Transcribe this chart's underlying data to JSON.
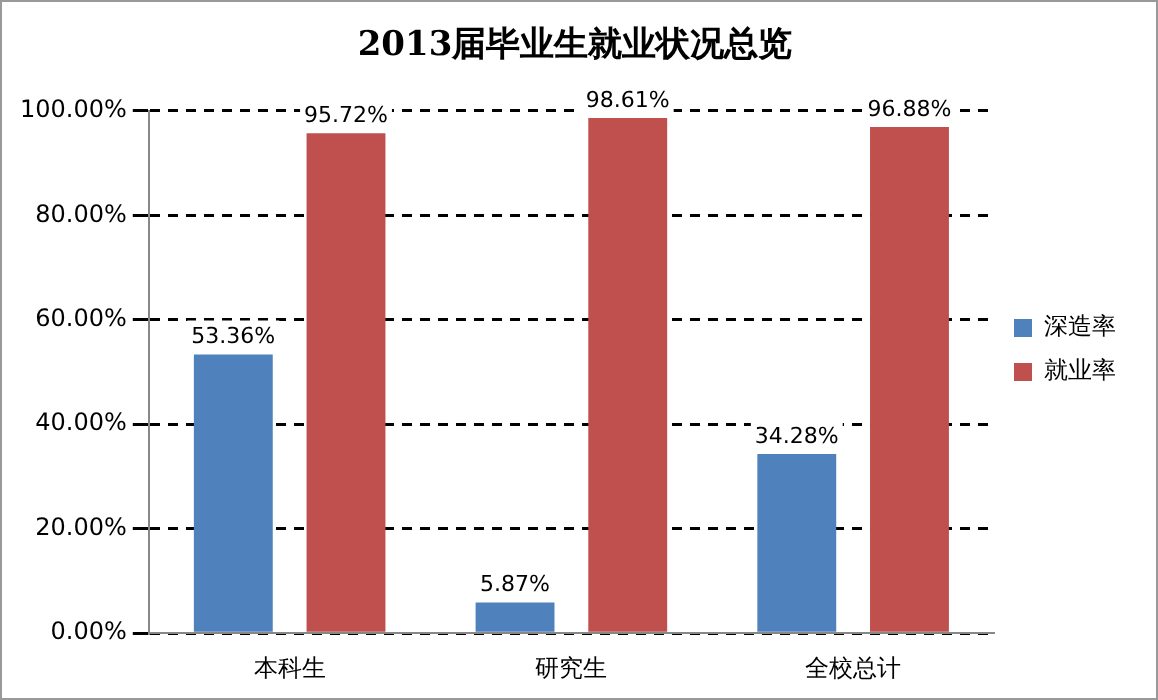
{
  "chart_data": {
    "type": "bar",
    "title": "2013届毕业生就业状况总览",
    "categories": [
      "本科生",
      "研究生",
      "全校总计"
    ],
    "series": [
      {
        "name": "深造率",
        "color": "#4f81bd",
        "values": [
          53.36,
          5.87,
          34.28
        ],
        "value_labels": [
          "53.36%",
          "5.87%",
          "34.28%"
        ]
      },
      {
        "name": "就业率",
        "color": "#c0504d",
        "values": [
          95.72,
          98.61,
          96.88
        ],
        "value_labels": [
          "95.72%",
          "98.61%",
          "96.88%"
        ]
      }
    ],
    "ylim": [
      0,
      100
    ],
    "yticks": [
      {
        "value": 0,
        "label": "0.00%"
      },
      {
        "value": 20,
        "label": "20.00%"
      },
      {
        "value": 40,
        "label": "40.00%"
      },
      {
        "value": 60,
        "label": "60.00%"
      },
      {
        "value": 80,
        "label": "80.00%"
      },
      {
        "value": 100,
        "label": "100.00%"
      }
    ],
    "grid": "y",
    "legend": "right"
  }
}
